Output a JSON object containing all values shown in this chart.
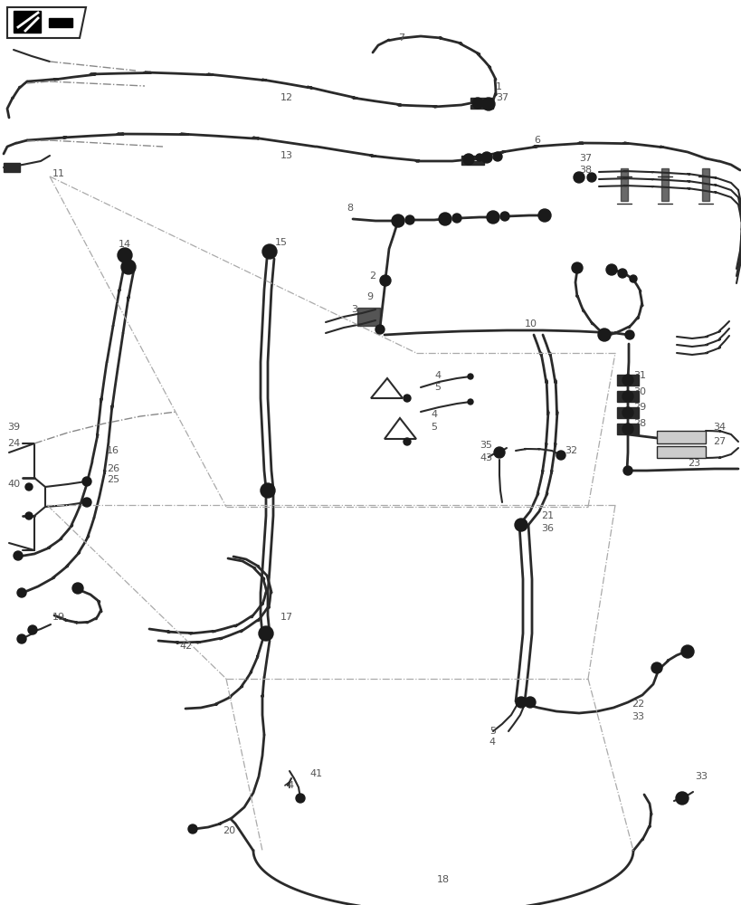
{
  "bg_color": "#ffffff",
  "lc": "#2a2a2a",
  "lc_gray": "#888888",
  "lc_lgray": "#aaaaaa",
  "figsize": [
    8.2,
    10.0
  ],
  "dpi": 100
}
